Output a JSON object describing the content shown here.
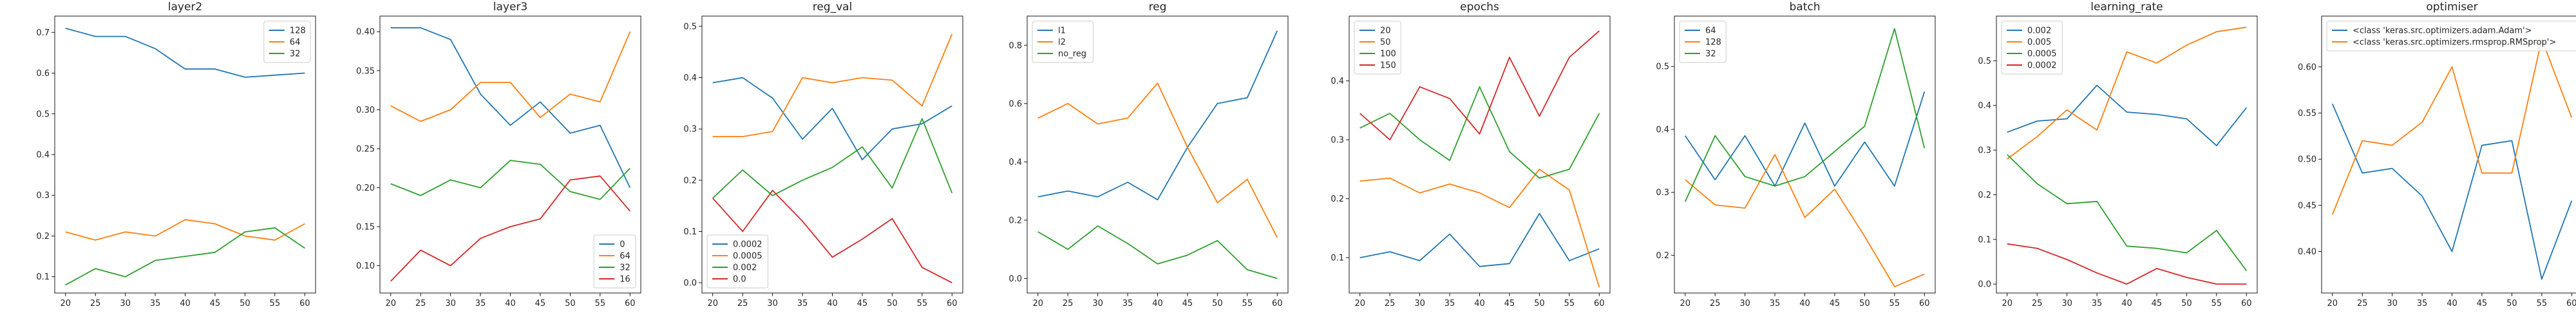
{
  "chart_data": [
    {
      "type": "line",
      "title": "layer2",
      "x": [
        20,
        25,
        30,
        35,
        40,
        45,
        50,
        55,
        60
      ],
      "xticks": [
        20,
        25,
        30,
        35,
        40,
        45,
        50,
        55,
        60
      ],
      "ylim": [
        0.06,
        0.74
      ],
      "yticks": [
        0.1,
        0.2,
        0.3,
        0.4,
        0.5,
        0.6,
        0.7
      ],
      "legend": "upper-right",
      "series": [
        {
          "name": "128",
          "color": "#1f77b4",
          "values": [
            0.71,
            0.69,
            0.69,
            0.66,
            0.61,
            0.61,
            0.59,
            0.595,
            0.6
          ]
        },
        {
          "name": "64",
          "color": "#ff7f0e",
          "values": [
            0.21,
            0.19,
            0.21,
            0.2,
            0.24,
            0.23,
            0.2,
            0.19,
            0.23
          ]
        },
        {
          "name": "32",
          "color": "#2ca02c",
          "values": [
            0.08,
            0.12,
            0.1,
            0.14,
            0.15,
            0.16,
            0.21,
            0.22,
            0.17
          ]
        }
      ]
    },
    {
      "type": "line",
      "title": "layer3",
      "x": [
        20,
        25,
        30,
        35,
        40,
        45,
        50,
        55,
        60
      ],
      "xticks": [
        20,
        25,
        30,
        35,
        40,
        45,
        50,
        55,
        60
      ],
      "ylim": [
        0.065,
        0.42
      ],
      "yticks": [
        0.1,
        0.15,
        0.2,
        0.25,
        0.3,
        0.35,
        0.4
      ],
      "legend": "lower-right",
      "series": [
        {
          "name": "0",
          "color": "#1f77b4",
          "values": [
            0.405,
            0.405,
            0.39,
            0.32,
            0.28,
            0.31,
            0.27,
            0.28,
            0.2
          ]
        },
        {
          "name": "64",
          "color": "#ff7f0e",
          "values": [
            0.305,
            0.285,
            0.3,
            0.335,
            0.335,
            0.29,
            0.32,
            0.31,
            0.4
          ]
        },
        {
          "name": "32",
          "color": "#2ca02c",
          "values": [
            0.205,
            0.19,
            0.21,
            0.2,
            0.235,
            0.23,
            0.195,
            0.185,
            0.225
          ]
        },
        {
          "name": "16",
          "color": "#d62728",
          "values": [
            0.08,
            0.12,
            0.1,
            0.135,
            0.15,
            0.16,
            0.21,
            0.215,
            0.17
          ]
        }
      ]
    },
    {
      "type": "line",
      "title": "reg_val",
      "x": [
        20,
        25,
        30,
        35,
        40,
        45,
        50,
        55,
        60
      ],
      "xticks": [
        20,
        25,
        30,
        35,
        40,
        45,
        50,
        55,
        60
      ],
      "ylim": [
        -0.02,
        0.52
      ],
      "yticks": [
        0.0,
        0.1,
        0.2,
        0.3,
        0.4,
        0.5
      ],
      "legend": "lower-left",
      "series": [
        {
          "name": "0.0002",
          "color": "#1f77b4",
          "values": [
            0.39,
            0.4,
            0.36,
            0.28,
            0.34,
            0.24,
            0.3,
            0.31,
            0.345
          ]
        },
        {
          "name": "0.0005",
          "color": "#ff7f0e",
          "values": [
            0.285,
            0.285,
            0.295,
            0.4,
            0.39,
            0.4,
            0.395,
            0.345,
            0.485
          ]
        },
        {
          "name": "0.002",
          "color": "#2ca02c",
          "values": [
            0.165,
            0.22,
            0.17,
            0.2,
            0.225,
            0.265,
            0.185,
            0.32,
            0.175
          ]
        },
        {
          "name": "0.0",
          "color": "#d62728",
          "values": [
            0.165,
            0.1,
            0.18,
            0.12,
            0.05,
            0.085,
            0.125,
            0.03,
            0.0
          ]
        }
      ]
    },
    {
      "type": "line",
      "title": "reg",
      "x": [
        20,
        25,
        30,
        35,
        40,
        45,
        50,
        55,
        60
      ],
      "xticks": [
        20,
        25,
        30,
        35,
        40,
        45,
        50,
        55,
        60
      ],
      "ylim": [
        -0.05,
        0.9
      ],
      "yticks": [
        0.0,
        0.2,
        0.4,
        0.6,
        0.8
      ],
      "legend": "upper-left",
      "series": [
        {
          "name": "l1",
          "color": "#1f77b4",
          "values": [
            0.28,
            0.3,
            0.28,
            0.33,
            0.27,
            0.45,
            0.6,
            0.62,
            0.85
          ]
        },
        {
          "name": "l2",
          "color": "#ff7f0e",
          "values": [
            0.55,
            0.6,
            0.53,
            0.55,
            0.67,
            0.45,
            0.26,
            0.34,
            0.14
          ]
        },
        {
          "name": "no_reg",
          "color": "#2ca02c",
          "values": [
            0.16,
            0.1,
            0.18,
            0.12,
            0.05,
            0.08,
            0.13,
            0.03,
            0.0
          ]
        }
      ]
    },
    {
      "type": "line",
      "title": "epochs",
      "x": [
        20,
        25,
        30,
        35,
        40,
        45,
        50,
        55,
        60
      ],
      "xticks": [
        20,
        25,
        30,
        35,
        40,
        45,
        50,
        55,
        60
      ],
      "ylim": [
        0.04,
        0.51
      ],
      "yticks": [
        0.1,
        0.2,
        0.3,
        0.4
      ],
      "legend": "upper-left",
      "series": [
        {
          "name": "20",
          "color": "#1f77b4",
          "values": [
            0.1,
            0.11,
            0.095,
            0.14,
            0.085,
            0.09,
            0.175,
            0.095,
            0.115
          ]
        },
        {
          "name": "50",
          "color": "#ff7f0e",
          "values": [
            0.23,
            0.235,
            0.21,
            0.225,
            0.21,
            0.185,
            0.25,
            0.215,
            0.05
          ]
        },
        {
          "name": "100",
          "color": "#2ca02c",
          "values": [
            0.32,
            0.345,
            0.3,
            0.265,
            0.39,
            0.28,
            0.235,
            0.25,
            0.345
          ]
        },
        {
          "name": "150",
          "color": "#d62728",
          "values": [
            0.345,
            0.3,
            0.39,
            0.37,
            0.31,
            0.44,
            0.34,
            0.44,
            0.485
          ]
        }
      ]
    },
    {
      "type": "line",
      "title": "batch",
      "x": [
        20,
        25,
        30,
        35,
        40,
        45,
        50,
        55,
        60
      ],
      "xticks": [
        20,
        25,
        30,
        35,
        40,
        45,
        50,
        55,
        60
      ],
      "ylim": [
        0.14,
        0.58
      ],
      "yticks": [
        0.2,
        0.3,
        0.4,
        0.5
      ],
      "legend": "upper-left",
      "series": [
        {
          "name": "64",
          "color": "#1f77b4",
          "values": [
            0.39,
            0.32,
            0.39,
            0.31,
            0.41,
            0.31,
            0.38,
            0.31,
            0.46
          ]
        },
        {
          "name": "128",
          "color": "#ff7f0e",
          "values": [
            0.32,
            0.28,
            0.275,
            0.36,
            0.26,
            0.305,
            0.23,
            0.15,
            0.17
          ]
        },
        {
          "name": "32",
          "color": "#2ca02c",
          "values": [
            0.285,
            0.39,
            0.325,
            0.31,
            0.325,
            0.365,
            0.405,
            0.56,
            0.37
          ]
        }
      ]
    },
    {
      "type": "line",
      "title": "learning_rate",
      "x": [
        20,
        25,
        30,
        35,
        40,
        45,
        50,
        55,
        60
      ],
      "xticks": [
        20,
        25,
        30,
        35,
        40,
        45,
        50,
        55,
        60
      ],
      "ylim": [
        -0.02,
        0.6
      ],
      "yticks": [
        0.0,
        0.1,
        0.2,
        0.3,
        0.4,
        0.5
      ],
      "legend": "upper-left",
      "series": [
        {
          "name": "0.002",
          "color": "#1f77b4",
          "values": [
            0.34,
            0.365,
            0.37,
            0.445,
            0.385,
            0.38,
            0.37,
            0.31,
            0.395
          ]
        },
        {
          "name": "0.005",
          "color": "#ff7f0e",
          "values": [
            0.28,
            0.33,
            0.39,
            0.345,
            0.52,
            0.495,
            0.535,
            0.565,
            0.575
          ]
        },
        {
          "name": "0.0005",
          "color": "#2ca02c",
          "values": [
            0.29,
            0.225,
            0.18,
            0.185,
            0.085,
            0.08,
            0.07,
            0.12,
            0.03
          ]
        },
        {
          "name": "0.0002",
          "color": "#d62728",
          "values": [
            0.09,
            0.08,
            0.055,
            0.025,
            0.0,
            0.035,
            0.015,
            0.0,
            0.0
          ]
        }
      ]
    },
    {
      "type": "line",
      "title": "optimiser",
      "x": [
        20,
        25,
        30,
        35,
        40,
        45,
        50,
        55,
        60
      ],
      "xticks": [
        20,
        25,
        30,
        35,
        40,
        45,
        50,
        55,
        60
      ],
      "ylim": [
        0.355,
        0.655
      ],
      "yticks": [
        0.4,
        0.45,
        0.5,
        0.55,
        0.6
      ],
      "legend": "upper-left",
      "series": [
        {
          "name": "<class 'keras.src.optimizers.adam.Adam'>",
          "color": "#1f77b4",
          "values": [
            0.56,
            0.485,
            0.49,
            0.46,
            0.4,
            0.515,
            0.52,
            0.37,
            0.455
          ]
        },
        {
          "name": "<class 'keras.src.optimizers.rmsprop.RMSprop'>",
          "color": "#ff7f0e",
          "values": [
            0.44,
            0.52,
            0.515,
            0.54,
            0.6,
            0.485,
            0.485,
            0.63,
            0.545
          ]
        }
      ]
    }
  ]
}
